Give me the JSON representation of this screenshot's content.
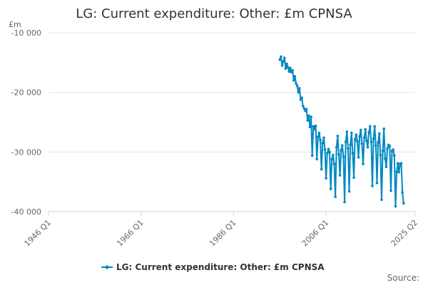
{
  "chart_data": {
    "type": "line",
    "title": "LG: Current expenditure: Other: £m CPNSA",
    "unit_label": "£m",
    "ylim": [
      -40000,
      -10000
    ],
    "y_ticks": [
      {
        "value": -10000,
        "label": "-10 000"
      },
      {
        "value": -20000,
        "label": "-20 000"
      },
      {
        "value": -30000,
        "label": "-30 000"
      },
      {
        "value": -40000,
        "label": "-40 000"
      }
    ],
    "xlim": [
      "1946 Q1",
      "2025 Q2"
    ],
    "x_ticks": [
      "1946 Q1",
      "1966 Q1",
      "1986 Q1",
      "2006 Q1",
      "2025 Q2"
    ],
    "grid": true,
    "legend_position": "bottom",
    "series": [
      {
        "name": "LG: Current expenditure: Other: £m CPNSA",
        "color": "#0088c2",
        "points": [
          [
            "1996 Q1",
            -14500
          ],
          [
            "1996 Q2",
            -14000
          ],
          [
            "1996 Q3",
            -15500
          ],
          [
            "1996 Q4",
            -14800
          ],
          [
            "1997 Q1",
            -14200
          ],
          [
            "1997 Q2",
            -16000
          ],
          [
            "1997 Q3",
            -15200
          ],
          [
            "1997 Q4",
            -15800
          ],
          [
            "1998 Q1",
            -16500
          ],
          [
            "1998 Q2",
            -15900
          ],
          [
            "1998 Q3",
            -16600
          ],
          [
            "1998 Q4",
            -16300
          ],
          [
            "1999 Q1",
            -18000
          ],
          [
            "1999 Q2",
            -17300
          ],
          [
            "1999 Q3",
            -18500
          ],
          [
            "1999 Q4",
            -18900
          ],
          [
            "2000 Q1",
            -20000
          ],
          [
            "2000 Q2",
            -19300
          ],
          [
            "2000 Q3",
            -21200
          ],
          [
            "2000 Q4",
            -20900
          ],
          [
            "2001 Q1",
            -22300
          ],
          [
            "2001 Q2",
            -22700
          ],
          [
            "2001 Q3",
            -23100
          ],
          [
            "2001 Q4",
            -22800
          ],
          [
            "2002 Q1",
            -24700
          ],
          [
            "2002 Q2",
            -23900
          ],
          [
            "2002 Q3",
            -25800
          ],
          [
            "2002 Q4",
            -24100
          ],
          [
            "2003 Q1",
            -30600
          ],
          [
            "2003 Q2",
            -25700
          ],
          [
            "2003 Q3",
            -26200
          ],
          [
            "2003 Q4",
            -25600
          ],
          [
            "2004 Q1",
            -31200
          ],
          [
            "2004 Q2",
            -27500
          ],
          [
            "2004 Q3",
            -26800
          ],
          [
            "2004 Q4",
            -28000
          ],
          [
            "2005 Q1",
            -32900
          ],
          [
            "2005 Q2",
            -28500
          ],
          [
            "2005 Q3",
            -27600
          ],
          [
            "2005 Q4",
            -29600
          ],
          [
            "2006 Q1",
            -34400
          ],
          [
            "2006 Q2",
            -30200
          ],
          [
            "2006 Q3",
            -29500
          ],
          [
            "2006 Q4",
            -30000
          ],
          [
            "2007 Q1",
            -36200
          ],
          [
            "2007 Q2",
            -31200
          ],
          [
            "2007 Q3",
            -30500
          ],
          [
            "2007 Q4",
            -32000
          ],
          [
            "2008 Q1",
            -37500
          ],
          [
            "2008 Q2",
            -29200
          ],
          [
            "2008 Q3",
            -27300
          ],
          [
            "2008 Q4",
            -30400
          ],
          [
            "2009 Q1",
            -33900
          ],
          [
            "2009 Q2",
            -29700
          ],
          [
            "2009 Q3",
            -28900
          ],
          [
            "2009 Q4",
            -30800
          ],
          [
            "2010 Q1",
            -38400
          ],
          [
            "2010 Q2",
            -28300
          ],
          [
            "2010 Q3",
            -26600
          ],
          [
            "2010 Q4",
            -29400
          ],
          [
            "2011 Q1",
            -36600
          ],
          [
            "2011 Q2",
            -28800
          ],
          [
            "2011 Q3",
            -26800
          ],
          [
            "2011 Q4",
            -30200
          ],
          [
            "2012 Q1",
            -34300
          ],
          [
            "2012 Q2",
            -27900
          ],
          [
            "2012 Q3",
            -27100
          ],
          [
            "2012 Q4",
            -28200
          ],
          [
            "2013 Q1",
            -30900
          ],
          [
            "2013 Q2",
            -27400
          ],
          [
            "2013 Q3",
            -26300
          ],
          [
            "2013 Q4",
            -28600
          ],
          [
            "2014 Q1",
            -32000
          ],
          [
            "2014 Q2",
            -27600
          ],
          [
            "2014 Q3",
            -26200
          ],
          [
            "2014 Q4",
            -28100
          ],
          [
            "2015 Q1",
            -29200
          ],
          [
            "2015 Q2",
            -26700
          ],
          [
            "2015 Q3",
            -25700
          ],
          [
            "2015 Q4",
            -28300
          ],
          [
            "2016 Q1",
            -35700
          ],
          [
            "2016 Q2",
            -27800
          ],
          [
            "2016 Q3",
            -25700
          ],
          [
            "2016 Q4",
            -28900
          ],
          [
            "2017 Q1",
            -35200
          ],
          [
            "2017 Q2",
            -28400
          ],
          [
            "2017 Q3",
            -26900
          ],
          [
            "2017 Q4",
            -30500
          ],
          [
            "2018 Q1",
            -38000
          ],
          [
            "2018 Q2",
            -29800
          ],
          [
            "2018 Q3",
            -26100
          ],
          [
            "2018 Q4",
            -31100
          ],
          [
            "2019 Q1",
            -32500
          ],
          [
            "2019 Q2",
            -29400
          ],
          [
            "2019 Q3",
            -28800
          ],
          [
            "2019 Q4",
            -29000
          ],
          [
            "2020 Q1",
            -36500
          ],
          [
            "2020 Q2",
            -29800
          ],
          [
            "2020 Q3",
            -29600
          ],
          [
            "2020 Q4",
            -30600
          ],
          [
            "2021 Q1",
            -39100
          ],
          [
            "2021 Q2",
            -33300
          ],
          [
            "2021 Q3",
            -31900
          ],
          [
            "2021 Q4",
            -33400
          ],
          [
            "2022 Q1",
            -32000
          ],
          [
            "2022 Q2",
            -31900
          ],
          [
            "2022 Q3",
            -36800
          ],
          [
            "2022 Q4",
            -38600
          ]
        ]
      }
    ]
  },
  "source_label": "Source:"
}
